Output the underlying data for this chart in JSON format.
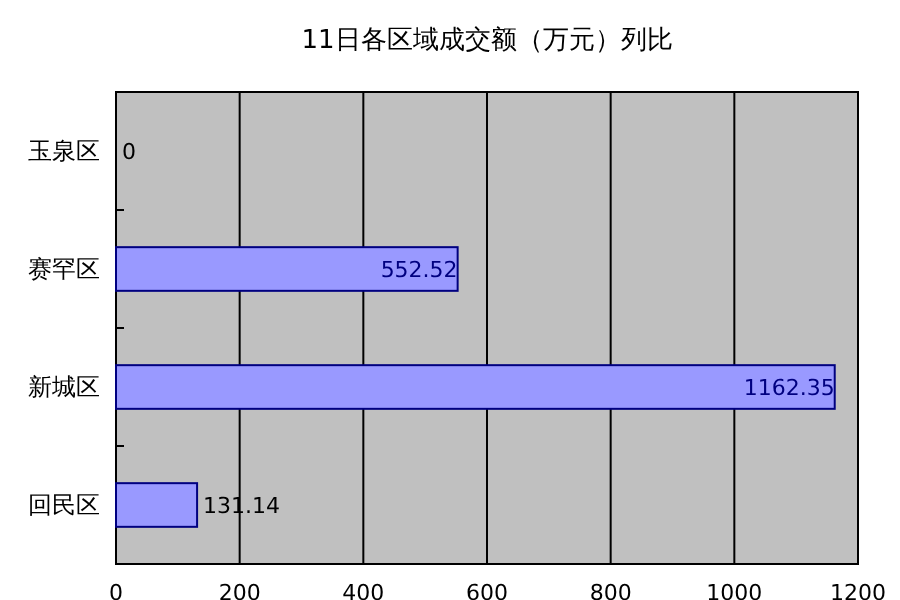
{
  "chart_data": {
    "type": "bar",
    "orientation": "horizontal",
    "title": "11日各区域成交额（万元）列比",
    "categories": [
      "玉泉区",
      "赛罕区",
      "新城区",
      "回民区"
    ],
    "values": [
      0,
      552.52,
      1162.35,
      131.14
    ],
    "color": "#9999ff",
    "xlim": [
      0,
      1200
    ],
    "xticks": [
      0,
      200,
      400,
      600,
      800,
      1000,
      1200
    ],
    "grid": "x",
    "data_labels": true
  }
}
